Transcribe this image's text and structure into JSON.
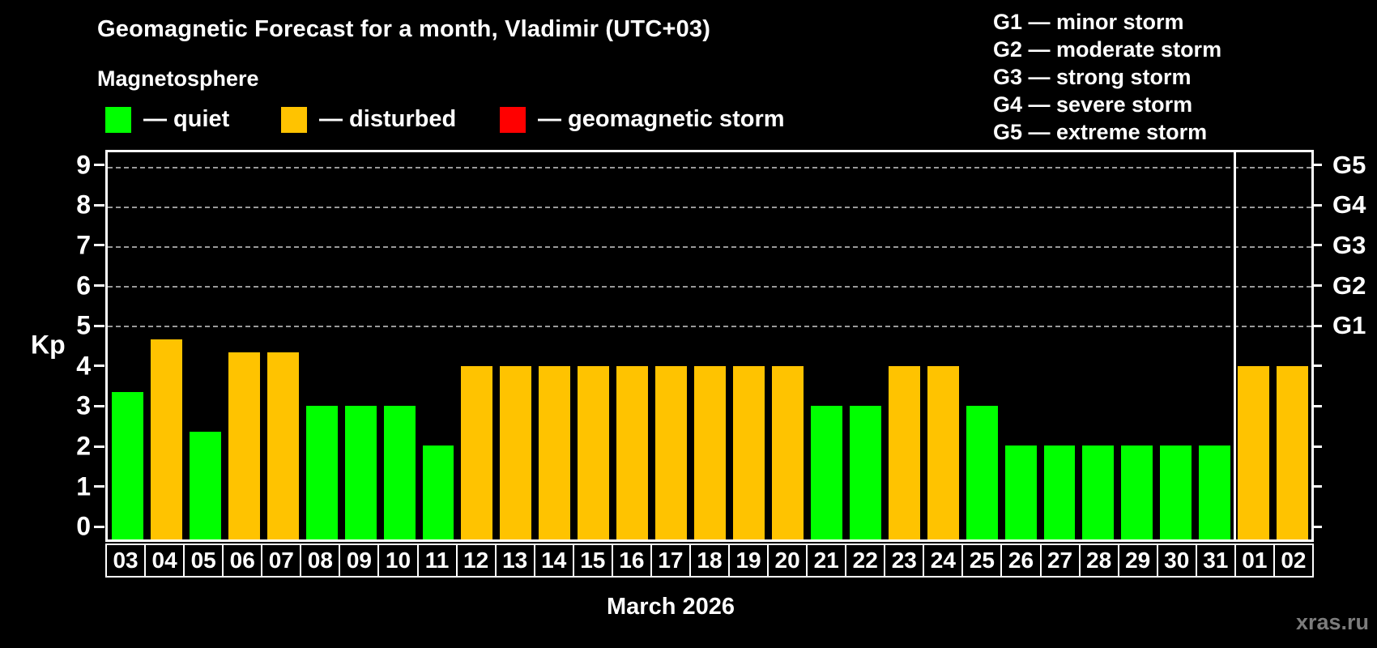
{
  "watermark": "xras.ru",
  "chart_data": {
    "type": "bar",
    "title": "Geomagnetic Forecast for a month, Vladimir (UTC+03)",
    "subtitle": "Magnetosphere",
    "ylabel": "Kp",
    "xlabel": "March 2026",
    "ylim": [
      0,
      9
    ],
    "yticks": [
      0,
      1,
      2,
      3,
      4,
      5,
      6,
      7,
      8,
      9
    ],
    "gridlines_at": [
      5,
      6,
      7,
      8,
      9
    ],
    "grid": "dashed horizontal lines at storm levels only",
    "legend_position": "top-left",
    "legend": [
      {
        "label": "— quiet",
        "state": "quiet",
        "color": "#00ff00"
      },
      {
        "label": "— disturbed",
        "state": "disturbed",
        "color": "#ffc300"
      },
      {
        "label": "— geomagnetic storm",
        "state": "storm",
        "color": "#ff0000"
      }
    ],
    "g_scale_legend": [
      "G1 — minor storm",
      "G2 — moderate storm",
      "G3 — strong storm",
      "G4 — severe storm",
      "G5 — extreme storm"
    ],
    "right_axis_labels": [
      {
        "kp": 5,
        "label": "G1"
      },
      {
        "kp": 6,
        "label": "G2"
      },
      {
        "kp": 7,
        "label": "G3"
      },
      {
        "kp": 8,
        "label": "G4"
      },
      {
        "kp": 9,
        "label": "G5"
      }
    ],
    "categories": [
      "03",
      "04",
      "05",
      "06",
      "07",
      "08",
      "09",
      "10",
      "11",
      "12",
      "13",
      "14",
      "15",
      "16",
      "17",
      "18",
      "19",
      "20",
      "21",
      "22",
      "23",
      "24",
      "25",
      "26",
      "27",
      "28",
      "29",
      "30",
      "31",
      "01",
      "02"
    ],
    "values": [
      3.33,
      4.67,
      2.33,
      4.33,
      4.33,
      3,
      3,
      3,
      2,
      4,
      4,
      4,
      4,
      4,
      4,
      4,
      4,
      4,
      3,
      3,
      4,
      4,
      3,
      2,
      2,
      2,
      2,
      2,
      2,
      4,
      4
    ],
    "states": [
      "quiet",
      "disturbed",
      "quiet",
      "disturbed",
      "disturbed",
      "quiet",
      "quiet",
      "quiet",
      "quiet",
      "disturbed",
      "disturbed",
      "disturbed",
      "disturbed",
      "disturbed",
      "disturbed",
      "disturbed",
      "disturbed",
      "disturbed",
      "quiet",
      "quiet",
      "disturbed",
      "disturbed",
      "quiet",
      "quiet",
      "quiet",
      "quiet",
      "quiet",
      "quiet",
      "quiet",
      "disturbed",
      "disturbed"
    ],
    "colors": {
      "quiet": "#00ff00",
      "disturbed": "#ffc300",
      "storm": "#ff0000"
    },
    "month_boundary_after_index": 28
  }
}
